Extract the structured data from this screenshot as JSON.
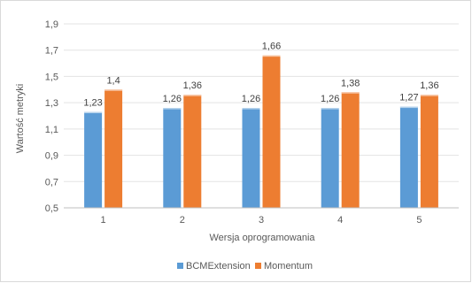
{
  "chart_data": {
    "type": "bar",
    "categories": [
      "1",
      "2",
      "3",
      "4",
      "5"
    ],
    "series": [
      {
        "name": "BCMExtension",
        "values": [
          1.23,
          1.26,
          1.26,
          1.26,
          1.27
        ],
        "labels": [
          "1,23",
          "1,26",
          "1,26",
          "1,26",
          "1,27"
        ],
        "color": "#5b9bd5"
      },
      {
        "name": "Momentum",
        "values": [
          1.4,
          1.36,
          1.66,
          1.38,
          1.36
        ],
        "labels": [
          "1,4",
          "1,36",
          "1,66",
          "1,38",
          "1,36"
        ],
        "color": "#ed7d31"
      }
    ],
    "xlabel": "Wersja oprogramowania",
    "ylabel": "Wartość metryki",
    "ylim": [
      0.5,
      1.9
    ],
    "yticks": [
      0.5,
      0.7,
      0.9,
      1.1,
      1.3,
      1.5,
      1.7,
      1.9
    ],
    "ytick_labels": [
      "0,5",
      "0,7",
      "0,9",
      "1,1",
      "1,3",
      "1,5",
      "1,7",
      "1,9"
    ],
    "grid": true,
    "legend_position": "bottom"
  }
}
